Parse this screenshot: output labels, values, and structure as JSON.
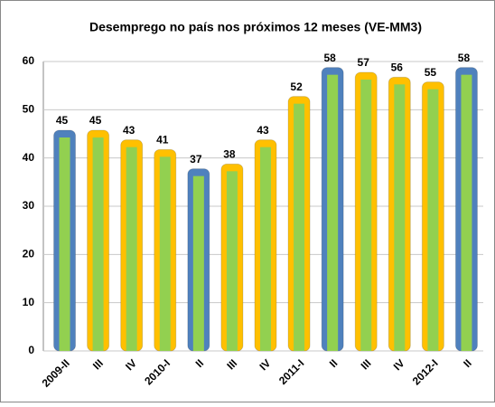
{
  "chart_data": {
    "type": "bar",
    "title": "Desemprego no país nos próximos 12 meses (VE-MM3)",
    "categories": [
      "2009-II",
      "III",
      "IV",
      "2010-I",
      "II",
      "III",
      "IV",
      "2011-I",
      "II",
      "III",
      "IV",
      "2012-I",
      "II"
    ],
    "values": [
      45,
      45,
      43,
      41,
      37,
      38,
      43,
      52,
      58,
      57,
      56,
      55,
      58
    ],
    "colors": [
      "#4f81bd",
      "#ffc000",
      "#ffc000",
      "#ffc000",
      "#4f81bd",
      "#ffc000",
      "#ffc000",
      "#ffc000",
      "#4f81bd",
      "#ffc000",
      "#ffc000",
      "#ffc000",
      "#4f81bd"
    ],
    "inner_color": "#92d050",
    "ylim": [
      0,
      60
    ],
    "yticks": [
      0,
      10,
      20,
      30,
      40,
      50,
      60
    ],
    "grid": true
  }
}
